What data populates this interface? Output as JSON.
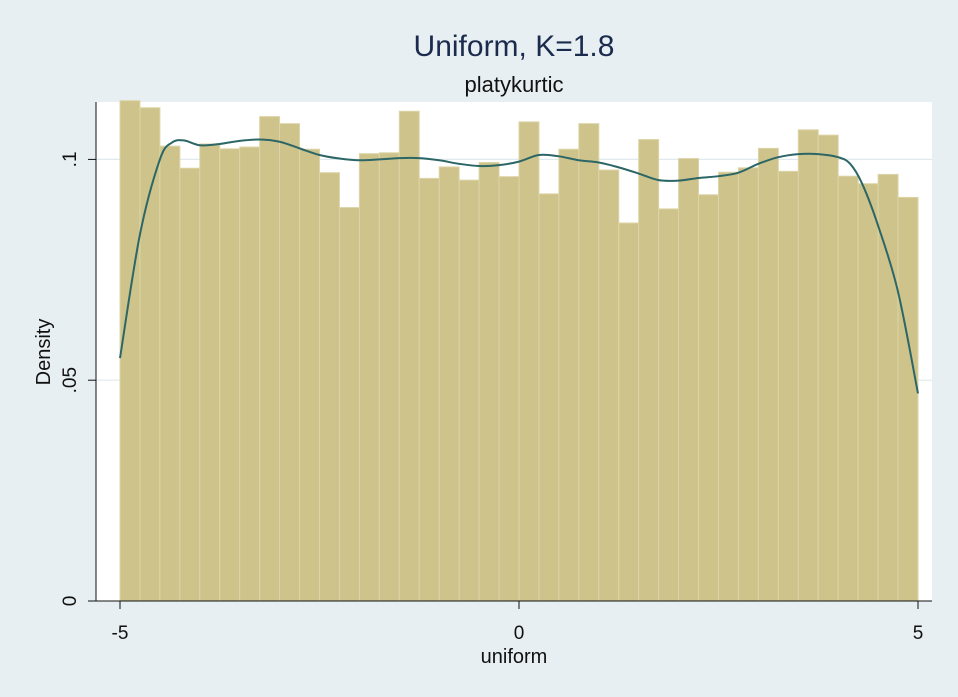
{
  "chart_data": {
    "type": "bar",
    "title": "Uniform, K=1.8",
    "subtitle": "platykurtic",
    "xlabel": "uniform",
    "ylabel": "Density",
    "xlim": [
      -5,
      5
    ],
    "ylim": [
      0,
      0.113
    ],
    "x_ticks": [
      {
        "value": -5,
        "label": "-5"
      },
      {
        "value": 0,
        "label": "0"
      },
      {
        "value": 5,
        "label": "5"
      }
    ],
    "y_ticks": [
      {
        "value": 0,
        "label": "0"
      },
      {
        "value": 0.05,
        "label": ".05"
      },
      {
        "value": 0.1,
        "label": ".1"
      }
    ],
    "grid": true,
    "bins": {
      "start": -5,
      "width": 0.25,
      "values": [
        0.1133,
        0.1117,
        0.103,
        0.098,
        0.1035,
        0.1024,
        0.1028,
        0.1097,
        0.1081,
        0.1023,
        0.097,
        0.0891,
        0.1013,
        0.1015,
        0.1109,
        0.0957,
        0.0983,
        0.0953,
        0.0993,
        0.0961,
        0.1085,
        0.0922,
        0.1023,
        0.1081,
        0.0976,
        0.0856,
        0.1045,
        0.0888,
        0.1002,
        0.092,
        0.0971,
        0.0981,
        0.1025,
        0.0973,
        0.1067,
        0.1055,
        0.0962,
        0.0945,
        0.0966,
        0.0914
      ]
    },
    "density_curve": {
      "x": [
        -5.0,
        -4.75,
        -4.5,
        -4.35,
        -4.2,
        -4.0,
        -3.75,
        -3.5,
        -3.25,
        -3.0,
        -2.75,
        -2.5,
        -2.25,
        -2.0,
        -1.75,
        -1.5,
        -1.25,
        -1.0,
        -0.75,
        -0.5,
        -0.25,
        0.0,
        0.25,
        0.5,
        0.75,
        1.0,
        1.25,
        1.5,
        1.75,
        2.0,
        2.25,
        2.5,
        2.75,
        3.0,
        3.25,
        3.5,
        3.75,
        4.0,
        4.15,
        4.3,
        4.5,
        4.75,
        5.0
      ],
      "y": [
        0.055,
        0.083,
        0.1,
        0.1038,
        0.1043,
        0.1032,
        0.1035,
        0.1042,
        0.1045,
        0.104,
        0.1025,
        0.101,
        0.1002,
        0.0998,
        0.1,
        0.1003,
        0.1003,
        0.0998,
        0.099,
        0.0985,
        0.0987,
        0.0995,
        0.101,
        0.1007,
        0.0998,
        0.0993,
        0.0982,
        0.0968,
        0.0953,
        0.0952,
        0.0958,
        0.0962,
        0.097,
        0.099,
        0.1005,
        0.1012,
        0.1012,
        0.1005,
        0.099,
        0.0945,
        0.085,
        0.07,
        0.047
      ]
    },
    "colors": {
      "bar_fill": "#cdc38b",
      "bar_edge": "#ddd5a8",
      "curve": "#2d6666",
      "plot_background": "#ffffff",
      "outer_background": "#e8eff2",
      "grid": "#e0eaee",
      "axis": "#111111"
    }
  }
}
